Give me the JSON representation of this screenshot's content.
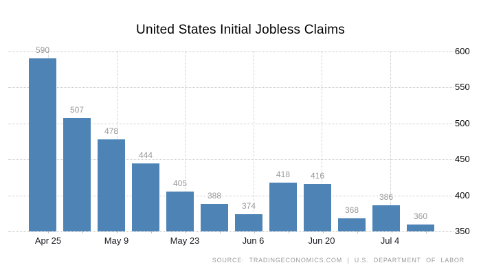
{
  "chart_data": {
    "type": "bar",
    "title": "United States Initial Jobless Claims",
    "values": [
      590,
      507,
      478,
      444,
      405,
      388,
      374,
      418,
      416,
      368,
      386,
      360
    ],
    "data_labels": [
      "590",
      "507",
      "478",
      "444",
      "405",
      "388",
      "374",
      "418",
      "416",
      "368",
      "386",
      "360"
    ],
    "x_tick_labels": [
      "Apr 25",
      "May 9",
      "May 23",
      "Jun 6",
      "Jun 20",
      "Jul 4"
    ],
    "y_ticks": [
      350,
      400,
      450,
      500,
      550,
      600
    ],
    "ylim": [
      350,
      600
    ],
    "xlabel": "",
    "ylabel": "",
    "y_axis_side": "right",
    "grid": "dotted horizontal and vertical",
    "legend_position": "none",
    "source": "SOURCE: TRADINGECONOMICS.COM | U.S. DEPARTMENT OF LABOR"
  },
  "colors": {
    "bar": "#4d84b5",
    "value_label": "#999999",
    "axis_label": "#17171f",
    "y_axis_label": "#0a0a0a",
    "gridline": "#c9c9c9",
    "source_text": "#9a9a9a",
    "title": "#000000",
    "background": "#ffffff"
  }
}
